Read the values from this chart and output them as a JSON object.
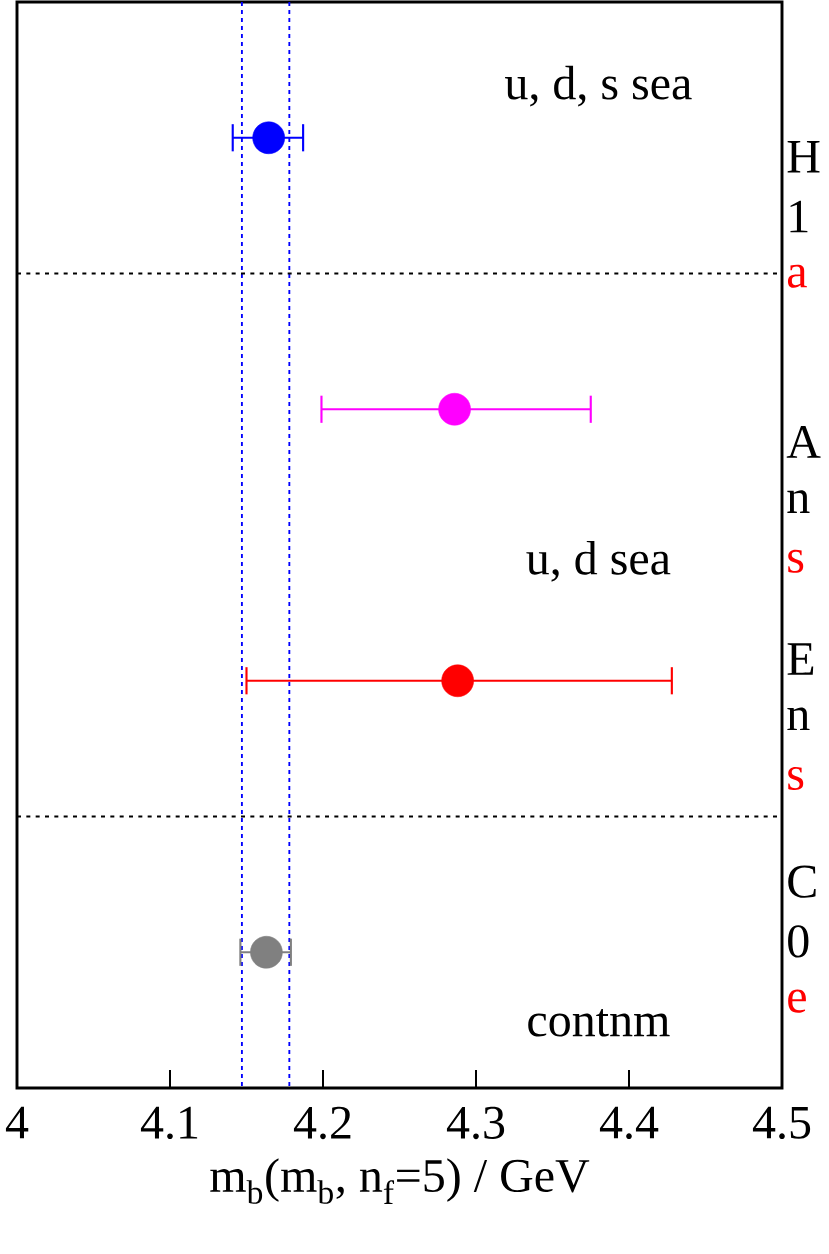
{
  "chart_data": {
    "type": "scatter",
    "orientation": "horizontal",
    "categories": [
      null,
      null,
      null,
      null
    ],
    "values": [
      4.1645,
      4.286,
      4.288,
      4.163
    ],
    "colors": [
      "#0000ff",
      "#ff00ff",
      "#ff0000",
      "#808080"
    ],
    "errors": [
      [
        4.141,
        4.187
      ],
      [
        4.199,
        4.375
      ],
      [
        4.15,
        4.428
      ],
      [
        4.146,
        4.179
      ]
    ],
    "marker": "circle",
    "xlim": [
      4,
      4.5
    ],
    "xticks": [
      4,
      4.1,
      4.2,
      4.3,
      4.4,
      4.5
    ],
    "xlabel": "m$_{b}$(m$_{b}$, n$_{f}$=5) / GeV",
    "tick_labels": "x",
    "ref_lines": [
      {
        "axis": "x",
        "value": 4.147,
        "color": "#0000ff",
        "line_style": "dashed"
      },
      {
        "axis": "x",
        "value": 4.178,
        "color": "#0000ff",
        "line_style": "dashed"
      }
    ],
    "annotations": [
      "u, d, s sea",
      "u, d sea",
      "contnm",
      "H",
      "1",
      "a",
      "A",
      "n",
      "s",
      "E",
      "n",
      "s",
      "C",
      "0",
      "e"
    ]
  }
}
